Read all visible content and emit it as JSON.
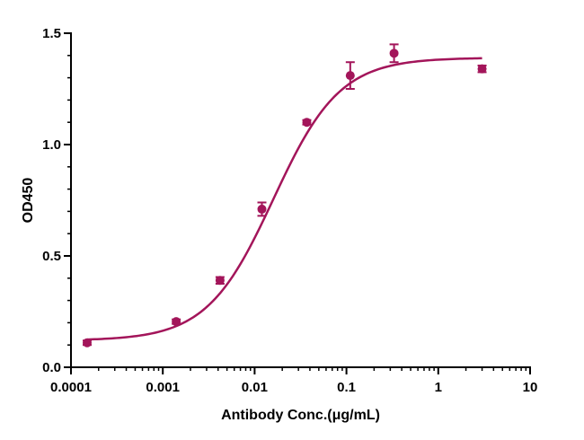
{
  "chart_data": {
    "type": "scatter",
    "xlabel": "Antibody Conc.(μg/mL)",
    "ylabel": "OD450",
    "x_scale": "log",
    "xlim": [
      0.0001,
      10
    ],
    "ylim": [
      0,
      1.5
    ],
    "x_ticks": [
      {
        "value": 0.0001,
        "label": "0.0001"
      },
      {
        "value": 0.001,
        "label": "0.001"
      },
      {
        "value": 0.01,
        "label": "0.01"
      },
      {
        "value": 0.1,
        "label": "0.1"
      },
      {
        "value": 1,
        "label": "1"
      },
      {
        "value": 10,
        "label": "10"
      }
    ],
    "y_ticks": [
      {
        "value": 0,
        "label": "0.0"
      },
      {
        "value": 0.5,
        "label": "0.5"
      },
      {
        "value": 1.0,
        "label": "1.0"
      },
      {
        "value": 1.5,
        "label": "1.5"
      }
    ],
    "grid": false,
    "color": "#a3155a",
    "points": [
      {
        "x": 0.00015,
        "y": 0.11,
        "err": 0.01
      },
      {
        "x": 0.0014,
        "y": 0.205,
        "err": 0.01
      },
      {
        "x": 0.0042,
        "y": 0.39,
        "err": 0.015
      },
      {
        "x": 0.012,
        "y": 0.71,
        "err": 0.03
      },
      {
        "x": 0.037,
        "y": 1.1,
        "err": 0.01
      },
      {
        "x": 0.11,
        "y": 1.31,
        "err": 0.06
      },
      {
        "x": 0.33,
        "y": 1.41,
        "err": 0.04
      },
      {
        "x": 3.0,
        "y": 1.34,
        "err": 0.015
      }
    ],
    "fit": {
      "model": "4PL",
      "bottom": 0.12,
      "top": 1.39,
      "ec50": 0.016,
      "hill": 1.2,
      "x_range": [
        0.00015,
        3.0
      ]
    }
  }
}
